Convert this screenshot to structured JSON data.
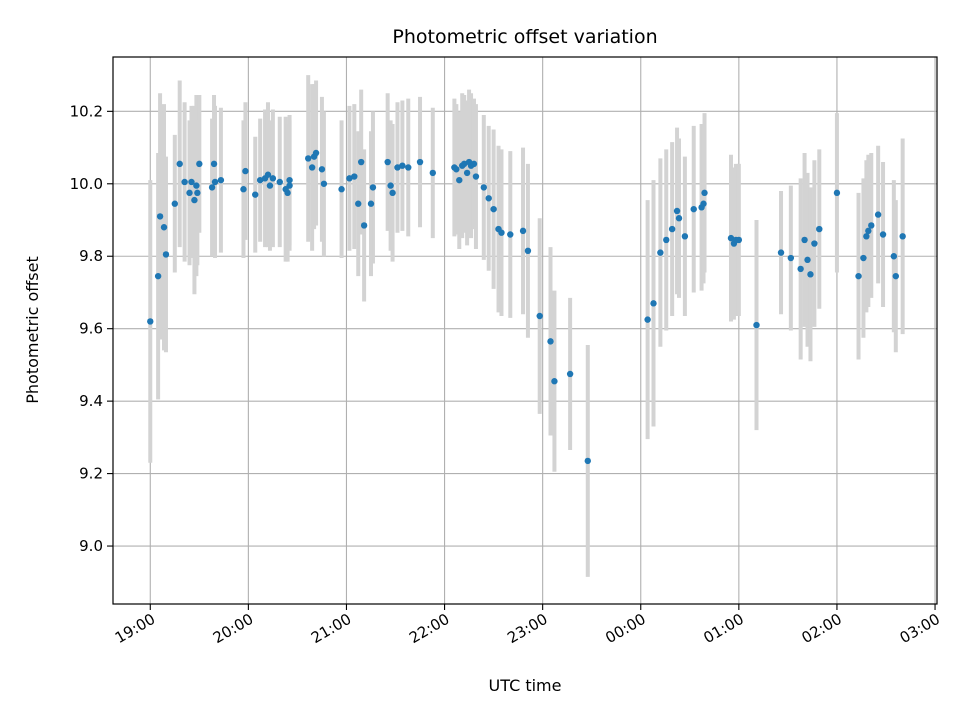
{
  "chart_data": {
    "type": "scatter",
    "title": "Photometric offset variation",
    "xlabel": "UTC time",
    "ylabel": "Photometric offset",
    "x_unit": "hours",
    "xlim": [
      18.62,
      27.02
    ],
    "ylim": [
      8.84,
      10.35
    ],
    "x_ticks": [
      19,
      20,
      21,
      22,
      23,
      24,
      25,
      26,
      27
    ],
    "x_tick_labels": [
      "19:00",
      "20:00",
      "21:00",
      "22:00",
      "23:00",
      "00:00",
      "01:00",
      "02:00",
      "03:00"
    ],
    "y_ticks": [
      9.0,
      9.2,
      9.4,
      9.6,
      9.8,
      10.0,
      10.2
    ],
    "y_tick_labels": [
      "9.0",
      "9.2",
      "9.4",
      "9.6",
      "9.8",
      "10.0",
      "10.2"
    ],
    "grid": true,
    "colors": {
      "point": "#1f77b4",
      "errorbar": "#d3d3d3",
      "grid": "#b0b0b0"
    },
    "series": [
      {
        "points": [
          {
            "x": 19.0,
            "y": 9.62,
            "err": 0.39
          },
          {
            "x": 19.08,
            "y": 9.745,
            "err": 0.34
          },
          {
            "x": 19.1,
            "y": 9.91,
            "err": 0.34
          },
          {
            "x": 19.14,
            "y": 9.88,
            "err": 0.34
          },
          {
            "x": 19.16,
            "y": 9.805,
            "err": 0.27
          },
          {
            "x": 19.25,
            "y": 9.945,
            "err": 0.19
          },
          {
            "x": 19.3,
            "y": 10.055,
            "err": 0.23
          },
          {
            "x": 19.35,
            "y": 10.005,
            "err": 0.22
          },
          {
            "x": 19.4,
            "y": 9.975,
            "err": 0.2
          },
          {
            "x": 19.42,
            "y": 10.005,
            "err": 0.21
          },
          {
            "x": 19.45,
            "y": 9.955,
            "err": 0.26
          },
          {
            "x": 19.47,
            "y": 9.995,
            "err": 0.25
          },
          {
            "x": 19.5,
            "y": 10.055,
            "err": 0.19
          },
          {
            "x": 19.48,
            "y": 9.975,
            "err": 0.2
          },
          {
            "x": 19.63,
            "y": 9.99,
            "err": 0.19
          },
          {
            "x": 19.65,
            "y": 10.055,
            "err": 0.19
          },
          {
            "x": 19.66,
            "y": 10.005,
            "err": 0.21
          },
          {
            "x": 19.72,
            "y": 10.01,
            "err": 0.2
          },
          {
            "x": 19.95,
            "y": 9.985,
            "err": 0.19
          },
          {
            "x": 19.97,
            "y": 10.035,
            "err": 0.19
          },
          {
            "x": 20.07,
            "y": 9.97,
            "err": 0.16
          },
          {
            "x": 20.12,
            "y": 10.01,
            "err": 0.17
          },
          {
            "x": 20.17,
            "y": 10.015,
            "err": 0.19
          },
          {
            "x": 20.2,
            "y": 10.025,
            "err": 0.2
          },
          {
            "x": 20.22,
            "y": 9.995,
            "err": 0.18
          },
          {
            "x": 20.25,
            "y": 10.015,
            "err": 0.19
          },
          {
            "x": 20.32,
            "y": 10.005,
            "err": 0.18
          },
          {
            "x": 20.38,
            "y": 9.985,
            "err": 0.2
          },
          {
            "x": 20.4,
            "y": 9.975,
            "err": 0.19
          },
          {
            "x": 20.42,
            "y": 10.01,
            "err": 0.18
          },
          {
            "x": 20.42,
            "y": 9.995,
            "err": 0.18
          },
          {
            "x": 20.61,
            "y": 10.07,
            "err": 0.23
          },
          {
            "x": 20.65,
            "y": 10.045,
            "err": 0.23
          },
          {
            "x": 20.67,
            "y": 10.075,
            "err": 0.2
          },
          {
            "x": 20.69,
            "y": 10.085,
            "err": 0.2
          },
          {
            "x": 20.75,
            "y": 10.04,
            "err": 0.2
          },
          {
            "x": 20.77,
            "y": 10.0,
            "err": 0.2
          },
          {
            "x": 20.95,
            "y": 9.985,
            "err": 0.19
          },
          {
            "x": 21.03,
            "y": 10.015,
            "err": 0.2
          },
          {
            "x": 21.08,
            "y": 10.02,
            "err": 0.2
          },
          {
            "x": 21.12,
            "y": 9.945,
            "err": 0.2
          },
          {
            "x": 21.15,
            "y": 10.06,
            "err": 0.2
          },
          {
            "x": 21.18,
            "y": 9.885,
            "err": 0.21
          },
          {
            "x": 21.27,
            "y": 9.99,
            "err": 0.21
          },
          {
            "x": 21.25,
            "y": 9.945,
            "err": 0.2
          },
          {
            "x": 21.42,
            "y": 10.06,
            "err": 0.19
          },
          {
            "x": 21.45,
            "y": 9.995,
            "err": 0.18
          },
          {
            "x": 21.47,
            "y": 9.975,
            "err": 0.19
          },
          {
            "x": 21.52,
            "y": 10.045,
            "err": 0.18
          },
          {
            "x": 21.57,
            "y": 10.05,
            "err": 0.18
          },
          {
            "x": 21.63,
            "y": 10.045,
            "err": 0.19
          },
          {
            "x": 21.75,
            "y": 10.06,
            "err": 0.18
          },
          {
            "x": 21.88,
            "y": 10.03,
            "err": 0.18
          },
          {
            "x": 22.1,
            "y": 10.045,
            "err": 0.19
          },
          {
            "x": 22.12,
            "y": 10.04,
            "err": 0.18
          },
          {
            "x": 22.15,
            "y": 10.01,
            "err": 0.19
          },
          {
            "x": 22.18,
            "y": 10.05,
            "err": 0.2
          },
          {
            "x": 22.2,
            "y": 10.055,
            "err": 0.19
          },
          {
            "x": 22.23,
            "y": 10.03,
            "err": 0.2
          },
          {
            "x": 22.25,
            "y": 10.06,
            "err": 0.2
          },
          {
            "x": 22.27,
            "y": 10.05,
            "err": 0.2
          },
          {
            "x": 22.3,
            "y": 10.055,
            "err": 0.18
          },
          {
            "x": 22.32,
            "y": 10.02,
            "err": 0.2
          },
          {
            "x": 22.4,
            "y": 9.99,
            "err": 0.2
          },
          {
            "x": 22.45,
            "y": 9.96,
            "err": 0.2
          },
          {
            "x": 22.5,
            "y": 9.93,
            "err": 0.22
          },
          {
            "x": 22.55,
            "y": 9.875,
            "err": 0.23
          },
          {
            "x": 22.58,
            "y": 9.865,
            "err": 0.23
          },
          {
            "x": 22.67,
            "y": 9.86,
            "err": 0.23
          },
          {
            "x": 22.8,
            "y": 9.87,
            "err": 0.23
          },
          {
            "x": 22.85,
            "y": 9.815,
            "err": 0.24
          },
          {
            "x": 22.97,
            "y": 9.635,
            "err": 0.27
          },
          {
            "x": 23.08,
            "y": 9.565,
            "err": 0.26
          },
          {
            "x": 23.12,
            "y": 9.455,
            "err": 0.25
          },
          {
            "x": 23.28,
            "y": 9.475,
            "err": 0.21
          },
          {
            "x": 23.46,
            "y": 9.235,
            "err": 0.32
          },
          {
            "x": 24.07,
            "y": 9.625,
            "err": 0.33
          },
          {
            "x": 24.13,
            "y": 9.67,
            "err": 0.34
          },
          {
            "x": 24.2,
            "y": 9.81,
            "err": 0.26
          },
          {
            "x": 24.26,
            "y": 9.845,
            "err": 0.25
          },
          {
            "x": 24.32,
            "y": 9.875,
            "err": 0.24
          },
          {
            "x": 24.37,
            "y": 9.925,
            "err": 0.23
          },
          {
            "x": 24.39,
            "y": 9.905,
            "err": 0.22
          },
          {
            "x": 24.45,
            "y": 9.855,
            "err": 0.22
          },
          {
            "x": 24.54,
            "y": 9.93,
            "err": 0.23
          },
          {
            "x": 24.62,
            "y": 9.935,
            "err": 0.23
          },
          {
            "x": 24.64,
            "y": 9.945,
            "err": 0.22
          },
          {
            "x": 24.65,
            "y": 9.975,
            "err": 0.22
          },
          {
            "x": 24.92,
            "y": 9.85,
            "err": 0.23
          },
          {
            "x": 24.95,
            "y": 9.835,
            "err": 0.21
          },
          {
            "x": 24.97,
            "y": 9.845,
            "err": 0.21
          },
          {
            "x": 25.0,
            "y": 9.845,
            "err": 0.21
          },
          {
            "x": 25.18,
            "y": 9.61,
            "err": 0.29
          },
          {
            "x": 25.43,
            "y": 9.81,
            "err": 0.17
          },
          {
            "x": 25.53,
            "y": 9.795,
            "err": 0.2
          },
          {
            "x": 25.63,
            "y": 9.765,
            "err": 0.25
          },
          {
            "x": 25.67,
            "y": 9.845,
            "err": 0.24
          },
          {
            "x": 25.7,
            "y": 9.79,
            "err": 0.24
          },
          {
            "x": 25.73,
            "y": 9.75,
            "err": 0.24
          },
          {
            "x": 25.77,
            "y": 9.835,
            "err": 0.23
          },
          {
            "x": 25.82,
            "y": 9.875,
            "err": 0.22
          },
          {
            "x": 26.0,
            "y": 9.975,
            "err": 0.22
          },
          {
            "x": 26.22,
            "y": 9.745,
            "err": 0.23
          },
          {
            "x": 26.27,
            "y": 9.795,
            "err": 0.22
          },
          {
            "x": 26.3,
            "y": 9.855,
            "err": 0.21
          },
          {
            "x": 26.32,
            "y": 9.87,
            "err": 0.21
          },
          {
            "x": 26.35,
            "y": 9.885,
            "err": 0.2
          },
          {
            "x": 26.42,
            "y": 9.915,
            "err": 0.19
          },
          {
            "x": 26.47,
            "y": 9.86,
            "err": 0.2
          },
          {
            "x": 26.58,
            "y": 9.8,
            "err": 0.21
          },
          {
            "x": 26.6,
            "y": 9.745,
            "err": 0.21
          },
          {
            "x": 26.67,
            "y": 9.855,
            "err": 0.27
          }
        ]
      }
    ]
  }
}
